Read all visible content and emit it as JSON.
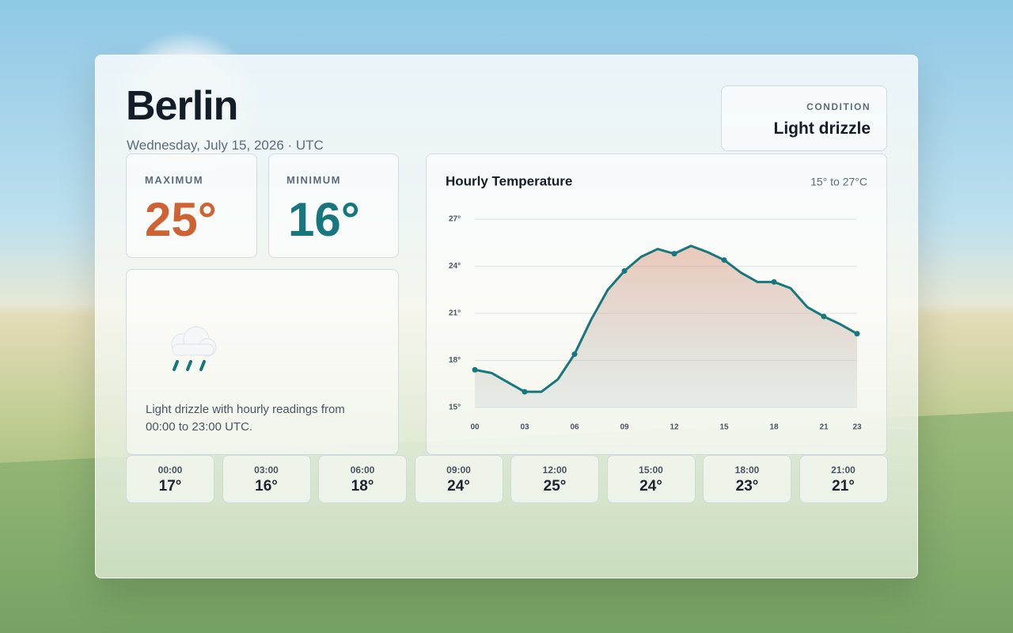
{
  "header": {
    "city": "Berlin",
    "date": "Wednesday, July 15, 2026 · UTC"
  },
  "condition": {
    "label": "CONDITION",
    "value": "Light drizzle"
  },
  "maximum": {
    "label": "MAXIMUM",
    "value": "25°"
  },
  "minimum": {
    "label": "MINIMUM",
    "value": "16°"
  },
  "description": "Light drizzle with hourly readings from 00:00 to 23:00 UTC.",
  "chart_data": {
    "type": "line",
    "title": "Hourly Temperature",
    "subtitle": "15° to 27°C",
    "categories": [
      "00",
      null,
      null,
      "03",
      null,
      null,
      "06",
      null,
      null,
      "09",
      null,
      null,
      "12",
      null,
      null,
      "15",
      null,
      null,
      "18",
      null,
      null,
      "21",
      null,
      "23"
    ],
    "series": [
      {
        "name": "Temperature",
        "color": "#17777c",
        "values": [
          17.4,
          17.2,
          16.6,
          16.0,
          16.0,
          16.8,
          18.4,
          20.6,
          22.5,
          23.7,
          24.6,
          25.1,
          24.8,
          25.3,
          24.9,
          24.4,
          23.6,
          23.0,
          23.0,
          22.6,
          21.4,
          20.8,
          20.3,
          19.7
        ]
      }
    ],
    "ylim": [
      15,
      27
    ],
    "yticks": [
      {
        "value": 15,
        "label": "15°"
      },
      {
        "value": 18,
        "label": "18°"
      },
      {
        "value": 21,
        "label": "21°"
      },
      {
        "value": 24,
        "label": "24°"
      },
      {
        "value": 27,
        "label": "27°"
      }
    ],
    "grid": true
  },
  "hourly": [
    {
      "time": "00:00",
      "temp": "17°"
    },
    {
      "time": "03:00",
      "temp": "16°"
    },
    {
      "time": "06:00",
      "temp": "18°"
    },
    {
      "time": "09:00",
      "temp": "24°"
    },
    {
      "time": "12:00",
      "temp": "25°"
    },
    {
      "time": "15:00",
      "temp": "24°"
    },
    {
      "time": "18:00",
      "temp": "23°"
    },
    {
      "time": "21:00",
      "temp": "21°"
    }
  ]
}
